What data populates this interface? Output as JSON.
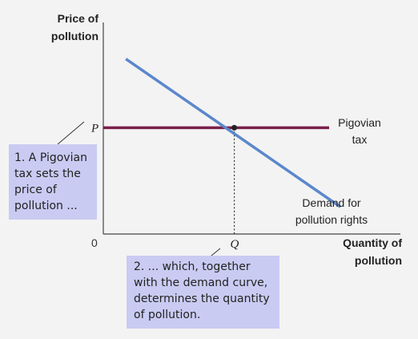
{
  "chart_data": {
    "type": "line",
    "ylabel": [
      "Price of",
      "pollution"
    ],
    "xlabel": [
      "Quantity of",
      "pollution"
    ],
    "origin_label": "0",
    "xlim": [
      0,
      10
    ],
    "ylim": [
      0,
      10
    ],
    "series": [
      {
        "name": "Demand for pollution rights",
        "label_lines": [
          "Demand for",
          "pollution rights"
        ],
        "color": "#5b87cc",
        "x": [
          1,
          10.5
        ],
        "y": [
          8.4,
          1.3
        ]
      },
      {
        "name": "Pigovian tax",
        "label_lines": [
          "Pigovian",
          "tax"
        ],
        "color": "#7a1f4a",
        "x": [
          0,
          10
        ],
        "y": [
          5.1,
          5.1
        ]
      }
    ],
    "equilibrium": {
      "x": 5.8,
      "y": 5.1,
      "x_label": "Q",
      "y_label": "P"
    }
  },
  "annotations": [
    {
      "id": "note-1",
      "lines": [
        "1. A Pigovian",
        "tax sets the",
        "price of",
        "pollution ..."
      ]
    },
    {
      "id": "note-2",
      "lines": [
        "2. ... which, together",
        "with the demand curve,",
        "determines the quantity",
        "of pollution."
      ]
    }
  ],
  "colors": {
    "axis": "#444444",
    "note_background": "#c9cbf2",
    "page_background": "#f3f3f3"
  }
}
